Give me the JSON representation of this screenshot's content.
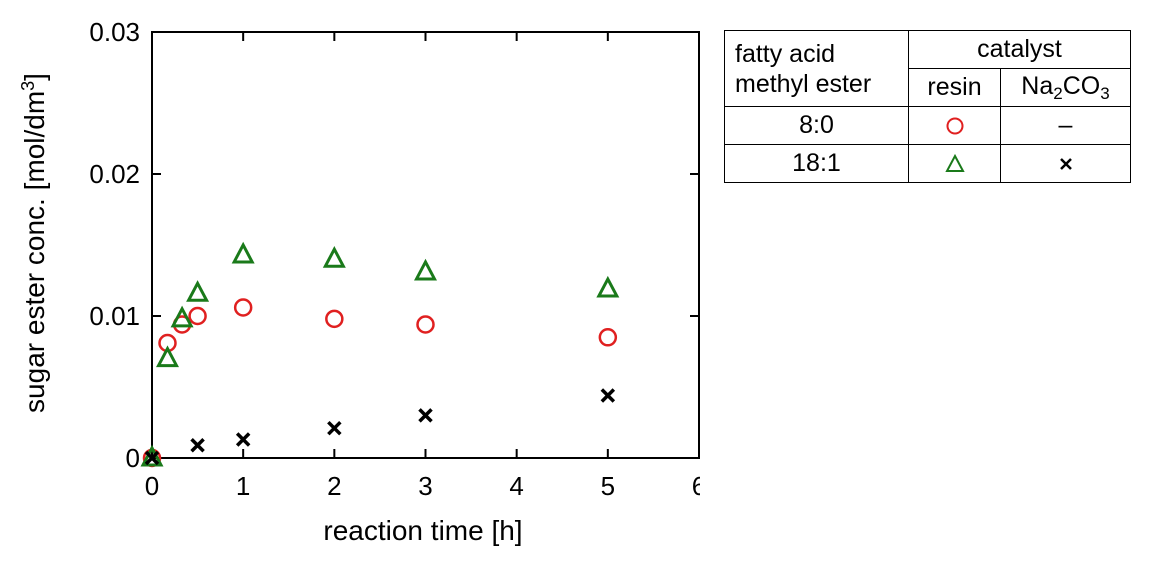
{
  "chart_data": {
    "type": "scatter",
    "title": "",
    "xlabel": "reaction time [h]",
    "ylabel": "sugar ester conc. [mol/dm",
    "ylabel_sup": "3",
    "ylabel_end": "]",
    "xlim": [
      0,
      6
    ],
    "ylim": [
      0,
      0.03
    ],
    "x_ticks": [
      "0",
      "1",
      "2",
      "3",
      "4",
      "5",
      "6"
    ],
    "y_ticks": [
      "0",
      "0.01",
      "0.02",
      "0.03"
    ],
    "grid": false,
    "legend": "table, outside right",
    "series": [
      {
        "key": "8:0-resin",
        "marker": "circle",
        "color": "#e02020",
        "x": [
          0,
          0.17,
          0.33,
          0.5,
          1,
          2,
          3,
          5
        ],
        "y": [
          0,
          0.0081,
          0.0094,
          0.01,
          0.0106,
          0.0098,
          0.0094,
          0.0085
        ]
      },
      {
        "key": "18:1-resin",
        "marker": "triangle",
        "color": "#1a7a1a",
        "x": [
          0,
          0.17,
          0.33,
          0.5,
          1,
          2,
          3,
          5
        ],
        "y": [
          0,
          0.007,
          0.0098,
          0.0116,
          0.0143,
          0.014,
          0.0131,
          0.0119
        ]
      },
      {
        "key": "18:1-Na2CO3",
        "marker": "cross",
        "color": "#000000",
        "x": [
          0,
          0.5,
          1,
          2,
          3,
          5
        ],
        "y": [
          0,
          0.0009,
          0.0013,
          0.0021,
          0.003,
          0.0044
        ]
      }
    ]
  },
  "legend_table": {
    "header_left_line1": "fatty acid",
    "header_left_line2": "methyl ester",
    "header_catalyst": "catalyst",
    "col_resin": "resin",
    "col_na_main": "Na",
    "col_na_sub1": "2",
    "col_na_mid": "CO",
    "col_na_sub2": "3",
    "rows": [
      {
        "label": "8:0",
        "resin_marker": "circle",
        "na_text": "–"
      },
      {
        "label": "18:1",
        "resin_marker": "triangle",
        "na_marker": "cross"
      }
    ]
  }
}
